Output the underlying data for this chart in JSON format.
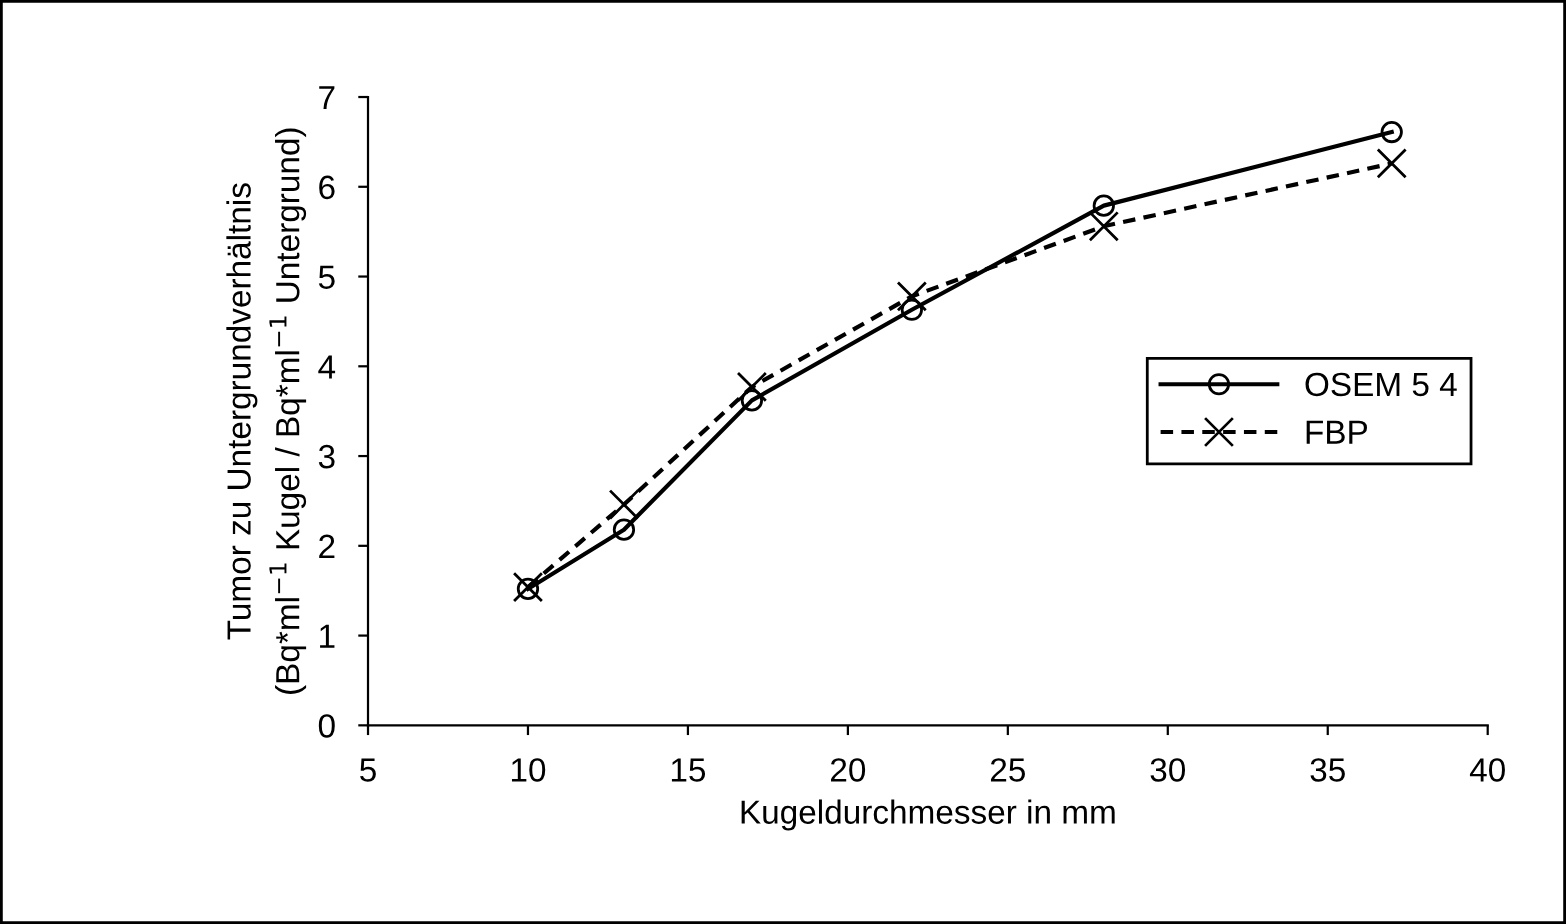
{
  "chart_data": {
    "type": "line",
    "xlabel": "Kugeldurchmesser in mm",
    "ylabel": "Tumor zu Untergrundverhältnis\n(Bq*ml$^{−1}$ Kugel / Bq*ml$^{−1}$ Untergrund)",
    "x": [
      10,
      13,
      17,
      22,
      28,
      37
    ],
    "series": [
      {
        "name": "OSEM 5 4",
        "color": "#000000",
        "marker": "circle",
        "line_style": "solid",
        "values": [
          1.52,
          2.18,
          3.62,
          4.63,
          5.79,
          6.61
        ]
      },
      {
        "name": "FBP",
        "color": "#000000",
        "marker": "cross",
        "line_style": "dashed",
        "values": [
          1.54,
          2.46,
          3.77,
          4.78,
          5.56,
          6.26
        ]
      }
    ],
    "xlim": [
      5,
      40
    ],
    "xticks": [
      5,
      10,
      15,
      20,
      25,
      30,
      35,
      40
    ],
    "ylim": [
      0,
      7
    ],
    "yticks": [
      0,
      1,
      2,
      3,
      4,
      5,
      6,
      7
    ],
    "grid": false,
    "legend": "right"
  }
}
